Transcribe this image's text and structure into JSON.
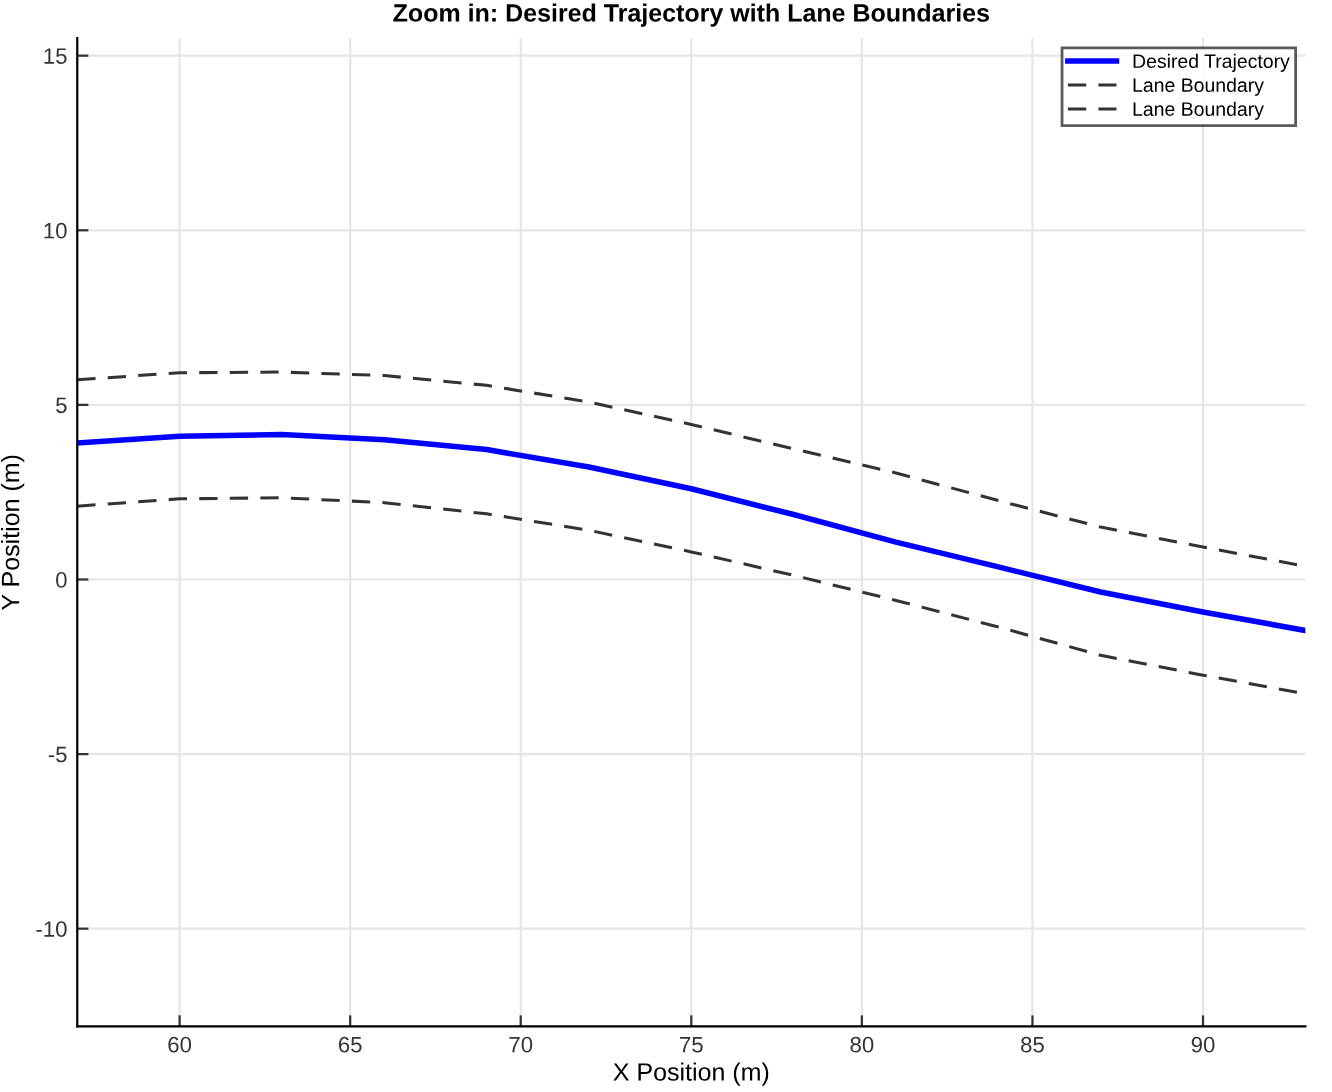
{
  "chart_data": {
    "type": "line",
    "title": "Zoom in: Desired Trajectory with Lane Boundaries",
    "xlabel": "X Position (m)",
    "ylabel": "Y Position (m)",
    "x": [
      57,
      60,
      63,
      66,
      69,
      72,
      75,
      78,
      81,
      84,
      87,
      90,
      93
    ],
    "series": [
      {
        "name": "Desired Trajectory",
        "color": "#0000ff",
        "line_style": "solid",
        "values": [
          3.91,
          4.1,
          4.15,
          4.0,
          3.72,
          3.22,
          2.6,
          1.86,
          1.07,
          0.36,
          -0.36,
          -0.93,
          -1.46
        ]
      },
      {
        "name": "Lane Boundary",
        "color": "#333333",
        "line_style": "dashed",
        "values": [
          5.72,
          5.92,
          5.94,
          5.84,
          5.56,
          5.08,
          4.44,
          3.74,
          3.05,
          2.26,
          1.5,
          0.93,
          0.38
        ]
      },
      {
        "name": "Lane Boundary",
        "color": "#333333",
        "line_style": "dashed",
        "values": [
          2.1,
          2.31,
          2.34,
          2.2,
          1.88,
          1.41,
          0.79,
          0.12,
          -0.6,
          -1.36,
          -2.17,
          -2.74,
          -3.27
        ]
      }
    ],
    "xlim": [
      57,
      93
    ],
    "ylim": [
      -12.8,
      15.5
    ],
    "xticks": [
      60,
      65,
      70,
      75,
      80,
      85,
      90
    ],
    "yticks": [
      -10,
      -5,
      0,
      5,
      10,
      15
    ],
    "grid": true,
    "legend": "top right",
    "marker": "none"
  }
}
